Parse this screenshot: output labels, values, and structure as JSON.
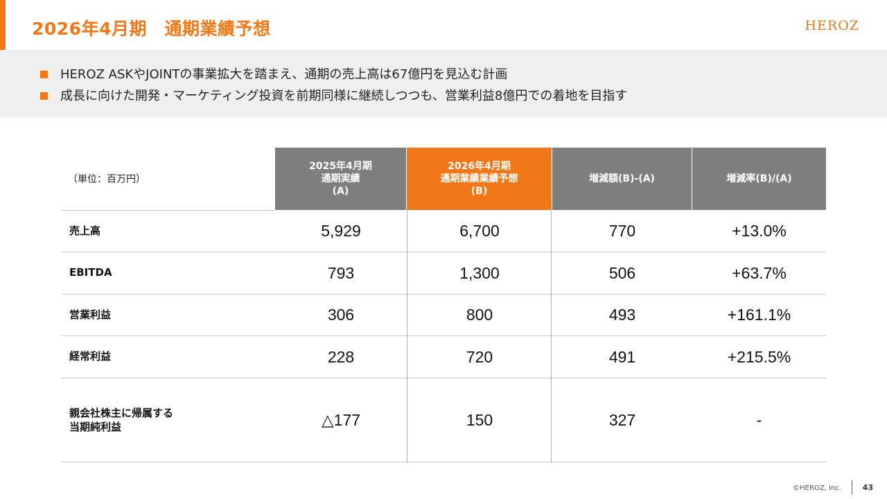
{
  "header": {
    "title": "2026年4月期　通期業績予想",
    "logo": "HEROZ"
  },
  "summary": {
    "items": [
      "HEROZ ASKやJOINTの事業拡大を踏まえ、通期の売上高は67億円を見込む計画",
      "成長に向けた開発・マーケティング投資を前期同様に継続しつつも、営業利益8億円での着地を目指す"
    ]
  },
  "table": {
    "unit": "（単位：百万円）",
    "headers": {
      "a": [
        "2025年4月期",
        "通期実績",
        "(A)"
      ],
      "b": [
        "2026年4月期",
        "通期業績業績予想",
        "(B)"
      ],
      "diff": "増減額(B)-(A)",
      "rate": "増減率(B)/(A)"
    },
    "rows": [
      {
        "label": [
          "売上高"
        ],
        "a": "5,929",
        "b": "6,700",
        "diff": "770",
        "rate": "+13.0%"
      },
      {
        "label": [
          "EBITDA"
        ],
        "a": "793",
        "b": "1,300",
        "diff": "506",
        "rate": "+63.7%"
      },
      {
        "label": [
          "営業利益"
        ],
        "a": "306",
        "b": "800",
        "diff": "493",
        "rate": "+161.1%"
      },
      {
        "label": [
          "経常利益"
        ],
        "a": "228",
        "b": "720",
        "diff": "491",
        "rate": "+215.5%"
      },
      {
        "label": [
          "親会社株主に帰属する",
          "当期純利益"
        ],
        "a": "△177",
        "b": "150",
        "diff": "327",
        "rate": "-"
      }
    ]
  },
  "footer": {
    "copyright": "©HEROZ, Inc.",
    "page": "43"
  },
  "colors": {
    "accent": "#f07818",
    "header_gray": "#7f7f7f",
    "summary_bg": "#efefef"
  }
}
